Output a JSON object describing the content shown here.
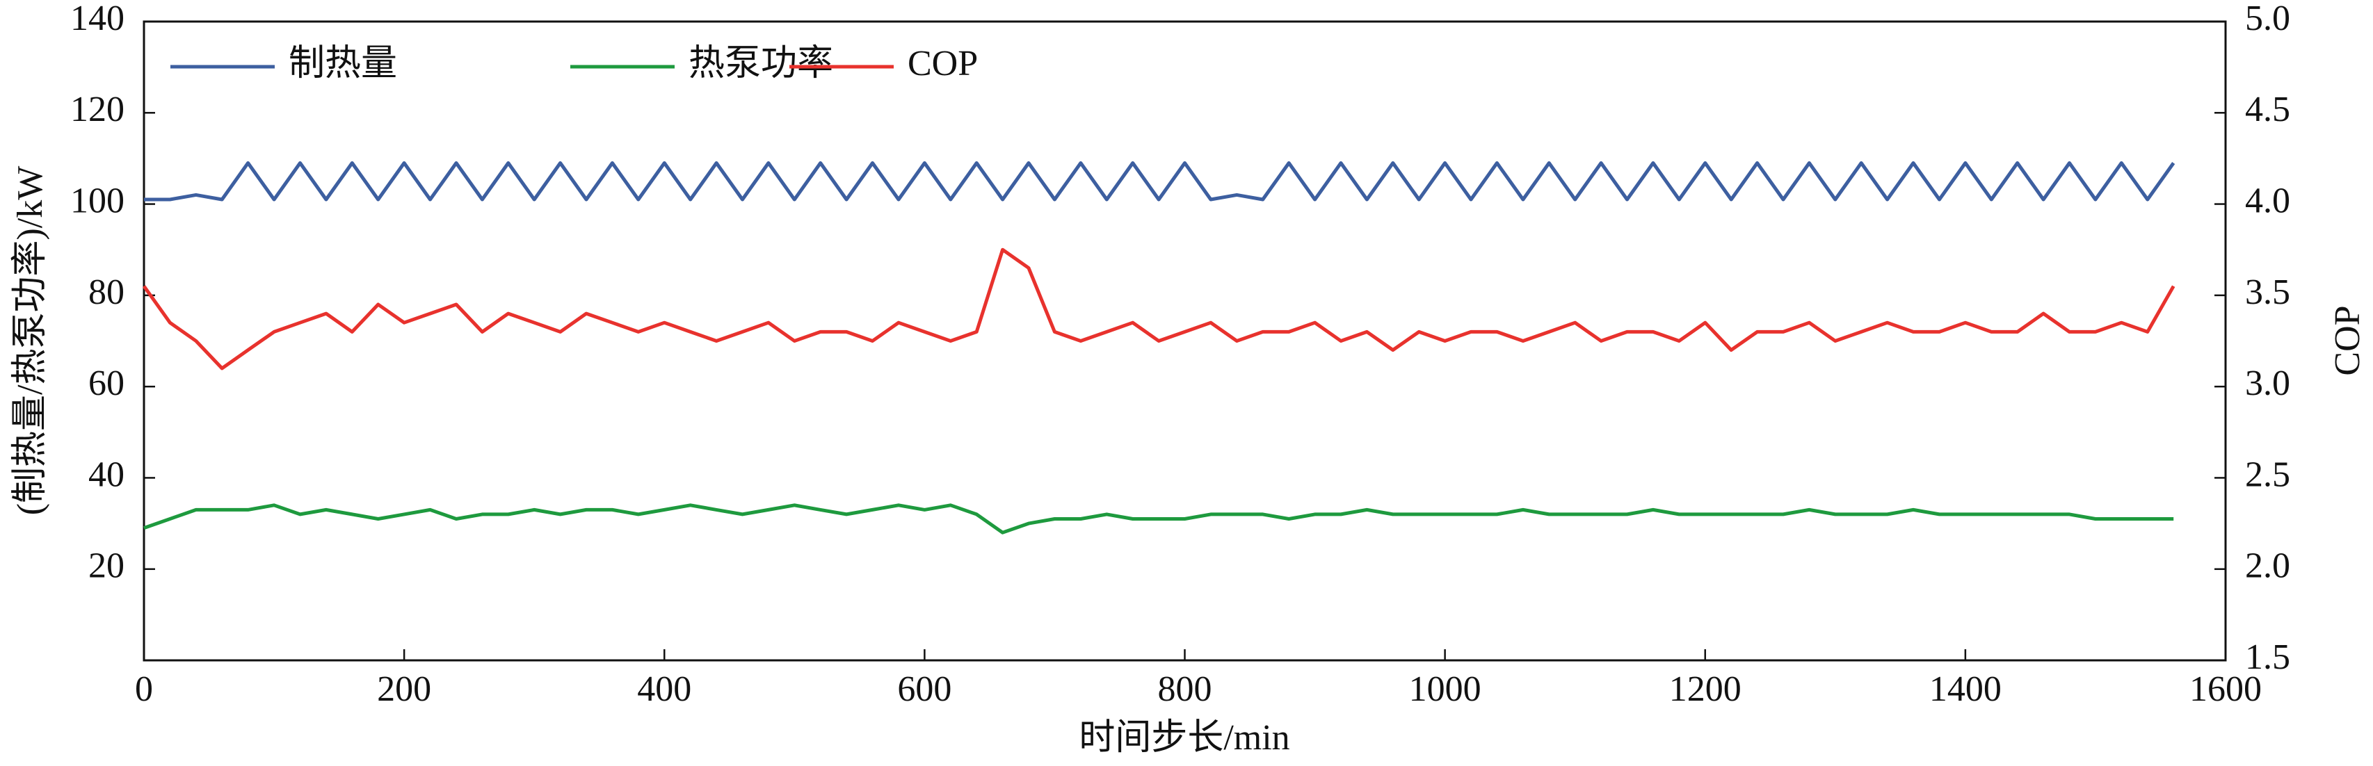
{
  "chart_data": {
    "type": "line",
    "x_label": "时间步长/min",
    "y_label": "(制热量/热泵功率)/kW",
    "y2_label": "COP",
    "legend": "upper left",
    "xlim": [
      0,
      1600
    ],
    "xticks": [
      0,
      200,
      400,
      600,
      800,
      1000,
      1200,
      1400,
      1600
    ],
    "ylim": [
      0,
      140
    ],
    "yticks": [
      20,
      40,
      60,
      80,
      100,
      120,
      140
    ],
    "y2lim": [
      1.5,
      5.0
    ],
    "y2ticks": [
      1.5,
      {
        "value": 2,
        "label": "2.0"
      },
      2.5,
      {
        "value": 3,
        "label": "3.0"
      },
      3.5,
      {
        "value": 4,
        "label": "4.0"
      },
      4.5,
      {
        "value": 5,
        "label": "5.0"
      }
    ],
    "x": [
      0,
      20,
      40,
      60,
      80,
      100,
      120,
      140,
      160,
      180,
      200,
      220,
      240,
      260,
      280,
      300,
      320,
      340,
      360,
      380,
      400,
      420,
      440,
      460,
      480,
      500,
      520,
      540,
      560,
      580,
      600,
      620,
      640,
      660,
      680,
      700,
      720,
      740,
      760,
      780,
      800,
      820,
      840,
      860,
      880,
      900,
      920,
      940,
      960,
      980,
      1000,
      1020,
      1040,
      1060,
      1080,
      1100,
      1120,
      1140,
      1160,
      1180,
      1200,
      1220,
      1240,
      1260,
      1280,
      1300,
      1320,
      1340,
      1360,
      1380,
      1400,
      1420,
      1440,
      1460,
      1480,
      1500,
      1520,
      1540,
      1560
    ],
    "series": [
      {
        "name": "制热量",
        "color": "#3d5fa0",
        "values": [
          101,
          101,
          102,
          101,
          109,
          101,
          109,
          101,
          109,
          101,
          109,
          101,
          109,
          101,
          109,
          101,
          109,
          101,
          109,
          101,
          109,
          101,
          109,
          101,
          109,
          101,
          109,
          101,
          109,
          101,
          109,
          101,
          109,
          101,
          109,
          101,
          109,
          101,
          109,
          101,
          109,
          101,
          102,
          101,
          109,
          101,
          109,
          101,
          109,
          101,
          109,
          101,
          109,
          101,
          109,
          101,
          109,
          101,
          109,
          101,
          109,
          101,
          109,
          101,
          109,
          101,
          109,
          101,
          109,
          101,
          109,
          101,
          109,
          101,
          109,
          101,
          109,
          101,
          109
        ]
      },
      {
        "name": "热泵功率",
        "color": "#1e9a3e",
        "values": [
          29,
          31,
          33,
          33,
          33,
          34,
          32,
          33,
          32,
          31,
          32,
          33,
          31,
          32,
          32,
          33,
          32,
          33,
          33,
          32,
          33,
          34,
          33,
          32,
          33,
          34,
          33,
          32,
          33,
          34,
          33,
          34,
          32,
          28,
          30,
          31,
          31,
          32,
          31,
          31,
          31,
          32,
          32,
          32,
          31,
          32,
          32,
          33,
          32,
          32,
          32,
          32,
          32,
          33,
          32,
          32,
          32,
          32,
          33,
          32,
          32,
          32,
          32,
          32,
          33,
          32,
          32,
          32,
          33,
          32,
          32,
          32,
          32,
          32,
          32,
          31,
          31,
          31,
          31
        ]
      },
      {
        "name": "COP",
        "color": "#e8322d",
        "axis": "y2",
        "values": [
          3.55,
          3.35,
          3.25,
          3.1,
          3.2,
          3.3,
          3.35,
          3.4,
          3.3,
          3.45,
          3.35,
          3.4,
          3.45,
          3.3,
          3.4,
          3.35,
          3.3,
          3.4,
          3.35,
          3.3,
          3.35,
          3.3,
          3.25,
          3.3,
          3.35,
          3.25,
          3.3,
          3.3,
          3.25,
          3.35,
          3.3,
          3.25,
          3.3,
          3.75,
          3.65,
          3.3,
          3.25,
          3.3,
          3.35,
          3.25,
          3.3,
          3.35,
          3.25,
          3.3,
          3.3,
          3.35,
          3.25,
          3.3,
          3.2,
          3.3,
          3.25,
          3.3,
          3.3,
          3.25,
          3.3,
          3.35,
          3.25,
          3.3,
          3.3,
          3.25,
          3.35,
          3.2,
          3.3,
          3.3,
          3.35,
          3.25,
          3.3,
          3.35,
          3.3,
          3.3,
          3.35,
          3.3,
          3.3,
          3.4,
          3.3,
          3.3,
          3.35,
          3.3,
          3.55
        ]
      }
    ]
  }
}
